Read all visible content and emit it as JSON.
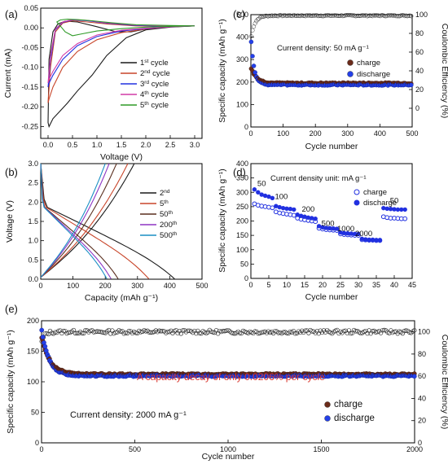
{
  "colors": {
    "black": "#1a1a1a",
    "red": "#c8452a",
    "blue": "#2130e0",
    "purple": "#8d35c4",
    "magenta": "#d23aa6",
    "green": "#2f9a27",
    "darkbrown": "#5a2f1f",
    "teal": "#1a8fc4",
    "charge_marker": "#6b2b1a",
    "discharge_marker": "#2440e8",
    "highlight_red": "#d9342b"
  },
  "chart_data": [
    {
      "id": "a",
      "panel_label": "(a)",
      "type": "line",
      "xlabel": "Voltage (V)",
      "ylabel": "Current (mA)",
      "xlim": [
        -0.15,
        3.15
      ],
      "ylim": [
        -0.28,
        0.05
      ],
      "xticks": [
        "0.0",
        "0.5",
        "1.0",
        "1.5",
        "2.0",
        "2.5",
        "3.0"
      ],
      "yticks": [
        "0.05",
        "0.00",
        "-0.05",
        "-0.10",
        "-0.15",
        "-0.20",
        "-0.25"
      ],
      "legend": {
        "placement": "bottom-right",
        "entries": [
          "1st cycle",
          "2nd cycle",
          "3rd cycle",
          "4th cycle",
          "5th cycle"
        ]
      },
      "series": [
        {
          "name": "1st cycle",
          "color": "black",
          "x": [
            3.0,
            2.5,
            2.0,
            1.6,
            1.2,
            0.9,
            0.6,
            0.4,
            0.25,
            0.1,
            0.02,
            0.0,
            0.02,
            0.1,
            0.2,
            0.35,
            0.6,
            1.0,
            1.4,
            1.7,
            2.0,
            2.5,
            3.0
          ],
          "y": [
            0.005,
            0.002,
            -0.005,
            -0.025,
            -0.07,
            -0.12,
            -0.16,
            -0.19,
            -0.21,
            -0.23,
            -0.25,
            -0.24,
            -0.08,
            -0.01,
            0.01,
            0.017,
            0.015,
            0.003,
            -0.01,
            -0.01,
            -0.003,
            0.003,
            0.005
          ]
        },
        {
          "name": "2nd cycle",
          "color": "red",
          "x": [
            3.0,
            2.5,
            2.0,
            1.5,
            1.0,
            0.6,
            0.3,
            0.1,
            0.02,
            0.0,
            0.05,
            0.15,
            0.3,
            0.5,
            0.8,
            1.2,
            1.8,
            2.5,
            3.0
          ],
          "y": [
            0.005,
            0.003,
            -0.003,
            -0.012,
            -0.03,
            -0.06,
            -0.1,
            -0.15,
            -0.18,
            -0.19,
            -0.1,
            -0.01,
            0.012,
            0.018,
            0.015,
            0.01,
            0.005,
            0.004,
            0.005
          ]
        },
        {
          "name": "3rd cycle",
          "color": "blue",
          "x": [
            3.0,
            2.5,
            2.0,
            1.5,
            1.0,
            0.6,
            0.3,
            0.1,
            0.02,
            0.0,
            0.05,
            0.15,
            0.3,
            0.5,
            0.8,
            1.2,
            1.8,
            2.5,
            3.0
          ],
          "y": [
            0.005,
            0.003,
            -0.002,
            -0.008,
            -0.022,
            -0.045,
            -0.08,
            -0.12,
            -0.14,
            -0.15,
            -0.08,
            -0.005,
            0.014,
            0.02,
            0.018,
            0.012,
            0.006,
            0.004,
            0.005
          ]
        },
        {
          "name": "4th cycle",
          "color": "magenta",
          "x": [
            3.0,
            2.5,
            2.0,
            1.5,
            1.0,
            0.6,
            0.3,
            0.1,
            0.02,
            0.0,
            0.05,
            0.15,
            0.3,
            0.5,
            0.8,
            1.2,
            1.8,
            2.5,
            3.0
          ],
          "y": [
            0.005,
            0.003,
            -0.001,
            -0.006,
            -0.018,
            -0.04,
            -0.07,
            -0.11,
            -0.13,
            -0.14,
            -0.07,
            -0.003,
            0.015,
            0.021,
            0.019,
            0.013,
            0.007,
            0.005,
            0.005
          ]
        },
        {
          "name": "5th cycle",
          "color": "green",
          "x": [
            3.0,
            2.5,
            2.0,
            1.5,
            1.0,
            0.7,
            0.5,
            0.35,
            0.25,
            0.18,
            0.25,
            0.4,
            0.6,
            0.9,
            1.3,
            1.8,
            2.5,
            3.0
          ],
          "y": [
            0.005,
            0.004,
            0.002,
            -0.002,
            -0.008,
            -0.015,
            -0.02,
            -0.01,
            0.005,
            0.015,
            0.02,
            0.022,
            0.021,
            0.018,
            0.013,
            0.008,
            0.006,
            0.005
          ]
        }
      ]
    },
    {
      "id": "b",
      "panel_label": "(b)",
      "type": "line",
      "xlabel": "Capacity (mAh g⁻¹)",
      "ylabel": "Voltage (V)",
      "xlim": [
        0,
        500
      ],
      "ylim": [
        0,
        3.0
      ],
      "xticks": [
        "0",
        "100",
        "200",
        "300",
        "400",
        "500"
      ],
      "yticks": [
        "0.0",
        "0.5",
        "1.0",
        "1.5",
        "2.0",
        "2.5",
        "3.0"
      ],
      "legend": {
        "placement": "right",
        "entries": [
          "2nd",
          "5th",
          "50th",
          "200th",
          "500th"
        ]
      },
      "series": [
        {
          "name": "2nd",
          "color": "black",
          "discharge_capacity": 415,
          "charge_capacity": 290
        },
        {
          "name": "5th",
          "color": "red",
          "discharge_capacity": 335,
          "charge_capacity": 270
        },
        {
          "name": "50th",
          "color": "darkbrown",
          "discharge_capacity": 240,
          "charge_capacity": 235
        },
        {
          "name": "200th",
          "color": "purple",
          "discharge_capacity": 218,
          "charge_capacity": 212
        },
        {
          "name": "500th",
          "color": "teal",
          "discharge_capacity": 205,
          "charge_capacity": 200
        }
      ]
    },
    {
      "id": "c",
      "panel_label": "(c)",
      "type": "scatter",
      "xlabel": "Cycle number",
      "ylabel": "Specific capacity (mAh g⁻¹)",
      "y2label": "Coulombic Efficiency (%)",
      "xlim": [
        0,
        500
      ],
      "ylim": [
        0,
        500
      ],
      "y2lim": [
        -20,
        100
      ],
      "xticks": [
        "0",
        "100",
        "200",
        "300",
        "400",
        "500"
      ],
      "yticks": [
        "0",
        "100",
        "200",
        "300",
        "400",
        "500"
      ],
      "y2ticks": [
        "0",
        "20",
        "40",
        "60",
        "80",
        "100"
      ],
      "annotation": "Current density: 50 mA g⁻¹",
      "legend": {
        "placement": "center-right",
        "entries": [
          "charge",
          "discharge"
        ]
      },
      "charge": {
        "initial": 265,
        "plateau": 195
      },
      "discharge": {
        "initial": 400,
        "plateau": 188
      },
      "coulombic_efficiency": {
        "initial": 75,
        "plateau": 99
      }
    },
    {
      "id": "d",
      "panel_label": "(d)",
      "type": "scatter",
      "xlabel": "Cycle number",
      "ylabel": "Specific capacity (mAh g⁻¹)",
      "xlim": [
        0,
        45
      ],
      "ylim": [
        0,
        400
      ],
      "xticks": [
        "0",
        "5",
        "10",
        "15",
        "20",
        "25",
        "30",
        "35",
        "40",
        "45"
      ],
      "yticks": [
        "0",
        "50",
        "100",
        "150",
        "200",
        "250",
        "300",
        "350",
        "400"
      ],
      "annotation": "Current density unit: mA g⁻¹",
      "legend": {
        "placement": "top-right",
        "entries": [
          "charge",
          "discharge"
        ]
      },
      "rate_labels": [
        {
          "text": "50",
          "x": 3,
          "y": 322
        },
        {
          "text": "100",
          "x": 8.5,
          "y": 277
        },
        {
          "text": "200",
          "x": 16,
          "y": 232
        },
        {
          "text": "500",
          "x": 21.5,
          "y": 183
        },
        {
          "text": "1000",
          "x": 26.5,
          "y": 165
        },
        {
          "text": "2000",
          "x": 31.5,
          "y": 147
        },
        {
          "text": "50",
          "x": 40,
          "y": 262
        }
      ],
      "segments": [
        {
          "x": [
            1,
            2,
            3,
            4,
            5,
            6
          ],
          "charge": [
            260,
            255,
            252,
            250,
            248,
            246
          ],
          "discharge": [
            310,
            300,
            292,
            288,
            285,
            280
          ]
        },
        {
          "x": [
            7,
            8,
            9,
            10,
            11,
            12
          ],
          "charge": [
            232,
            228,
            226,
            224,
            222,
            220
          ],
          "discharge": [
            252,
            248,
            245,
            243,
            242,
            240
          ]
        },
        {
          "x": [
            13,
            14,
            15,
            16,
            17,
            18
          ],
          "charge": [
            210,
            206,
            204,
            202,
            200,
            198
          ],
          "discharge": [
            222,
            218,
            215,
            212,
            210,
            208
          ]
        },
        {
          "x": [
            19,
            20,
            21,
            22,
            23,
            24
          ],
          "charge": [
            175,
            172,
            170,
            169,
            168,
            167
          ],
          "discharge": [
            182,
            178,
            176,
            175,
            174,
            173
          ]
        },
        {
          "x": [
            25,
            26,
            27,
            28,
            29,
            30
          ],
          "charge": [
            155,
            153,
            152,
            151,
            150,
            150
          ],
          "discharge": [
            160,
            158,
            157,
            156,
            155,
            155
          ]
        },
        {
          "x": [
            31,
            32,
            33,
            34,
            35,
            36
          ],
          "charge": [
            135,
            134,
            133,
            133,
            132,
            132
          ],
          "discharge": [
            138,
            136,
            135,
            135,
            134,
            134
          ]
        },
        {
          "x": [
            37,
            38,
            39,
            40,
            41,
            42,
            43
          ],
          "charge": [
            215,
            212,
            210,
            210,
            209,
            208,
            208
          ],
          "discharge": [
            245,
            243,
            242,
            241,
            240,
            240,
            240
          ]
        }
      ]
    },
    {
      "id": "e",
      "panel_label": "(e)",
      "type": "scatter",
      "xlabel": "Cycle number",
      "ylabel": "Specific capacity (mAh g⁻¹)",
      "y2label": "Coulombic Efficiency (%)",
      "xlim": [
        0,
        2000
      ],
      "ylim": [
        0,
        200
      ],
      "y2lim": [
        0,
        110
      ],
      "xticks": [
        "0",
        "500",
        "1000",
        "1500",
        "2000"
      ],
      "yticks": [
        "0",
        "50",
        "100",
        "150",
        "200"
      ],
      "y2ticks": [
        "0",
        "20",
        "40",
        "60",
        "80",
        "100"
      ],
      "annotation": "Current density: 2000 mA g⁻¹",
      "highlight": "A capacity decay of only 0.0206% per cycle",
      "legend": {
        "placement": "bottom-right",
        "entries": [
          "charge",
          "discharge"
        ]
      },
      "charge": {
        "initial": 175,
        "plateau": 112
      },
      "discharge": {
        "initial": 185,
        "plateau": 110
      },
      "coulombic_efficiency": {
        "initial": 90,
        "plateau": 100
      }
    }
  ]
}
